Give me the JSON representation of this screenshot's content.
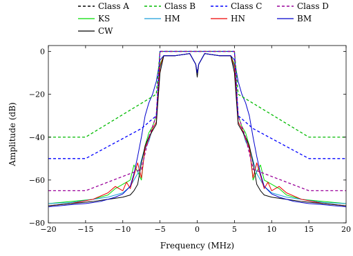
{
  "chart_data": {
    "type": "line",
    "title": "",
    "xlabel": "Frequency (MHz)",
    "ylabel": "Amplitude (dB)",
    "xlim": [
      -20,
      20
    ],
    "ylim": [
      -80,
      7
    ],
    "xticks": [
      -20,
      -15,
      -10,
      -5,
      0,
      5,
      10,
      15,
      20
    ],
    "yticks": [
      -80,
      -60,
      -40,
      -20,
      0
    ],
    "xtick_labels": [
      "−20",
      "−15",
      "−10",
      "−5",
      "0",
      "5",
      "10",
      "15",
      "20"
    ],
    "ytick_labels": [
      "−80",
      "−60",
      "−40",
      "−20",
      "0"
    ],
    "grid": false,
    "legend_placement": "top-center",
    "series": [
      {
        "name": "Class A",
        "color": "#000000",
        "style": "dashed",
        "points": [
          [
            -5.0,
            0
          ],
          [
            5.0,
            0
          ]
        ]
      },
      {
        "name": "Class B",
        "color": "#00bb00",
        "style": "dashed",
        "points": [
          [
            -20,
            -40
          ],
          [
            -15,
            -40
          ],
          [
            -5.5,
            -20
          ],
          [
            -5.0,
            0
          ],
          [
            5.0,
            0
          ],
          [
            5.5,
            -20
          ],
          [
            15,
            -40
          ],
          [
            20,
            -40
          ]
        ]
      },
      {
        "name": "Class C",
        "color": "#0000ff",
        "style": "dashed",
        "points": [
          [
            -20,
            -50
          ],
          [
            -15,
            -50
          ],
          [
            -7.5,
            -36
          ],
          [
            -5.5,
            -30
          ],
          [
            -5.0,
            0
          ],
          [
            5.0,
            0
          ],
          [
            5.5,
            -30
          ],
          [
            7.5,
            -36
          ],
          [
            15,
            -50
          ],
          [
            20,
            -50
          ]
        ]
      },
      {
        "name": "Class D",
        "color": "#990099",
        "style": "dashed",
        "points": [
          [
            -20,
            -65
          ],
          [
            -15,
            -65
          ],
          [
            -7.5,
            -55
          ],
          [
            -6.5,
            -40
          ],
          [
            -5.5,
            -30
          ],
          [
            -5.0,
            0
          ],
          [
            5.0,
            0
          ],
          [
            5.5,
            -30
          ],
          [
            6.5,
            -40
          ],
          [
            7.5,
            -55
          ],
          [
            15,
            -65
          ],
          [
            20,
            -65
          ]
        ]
      },
      {
        "name": "KS",
        "color": "#00dd00",
        "style": "solid",
        "points": [
          [
            -20,
            -71
          ],
          [
            -17,
            -70
          ],
          [
            -14,
            -69
          ],
          [
            -12,
            -67
          ],
          [
            -11,
            -64
          ],
          [
            -10,
            -62
          ],
          [
            -9,
            -60
          ],
          [
            -8.5,
            -53
          ],
          [
            -8,
            -56
          ],
          [
            -7.5,
            -60
          ],
          [
            -7,
            -44
          ],
          [
            -6.5,
            -38
          ],
          [
            -6,
            -35
          ],
          [
            -5.5,
            -30
          ],
          [
            -5.0,
            -6
          ],
          [
            -4.5,
            -2
          ],
          [
            -3,
            -2
          ],
          [
            -1,
            -1
          ],
          [
            -0.2,
            -6
          ],
          [
            0,
            -10
          ],
          [
            0.2,
            -6
          ],
          [
            1,
            -1
          ],
          [
            3,
            -2
          ],
          [
            4.5,
            -2
          ],
          [
            5.0,
            -6
          ],
          [
            5.5,
            -30
          ],
          [
            6,
            -35
          ],
          [
            6.5,
            -38
          ],
          [
            7,
            -44
          ],
          [
            7.5,
            -60
          ],
          [
            8,
            -56
          ],
          [
            8.5,
            -53
          ],
          [
            9,
            -60
          ],
          [
            10,
            -62
          ],
          [
            11,
            -64
          ],
          [
            12,
            -67
          ],
          [
            14,
            -69
          ],
          [
            17,
            -70
          ],
          [
            20,
            -71
          ]
        ]
      },
      {
        "name": "HM",
        "color": "#1a9ed9",
        "style": "solid",
        "points": [
          [
            -20,
            -71
          ],
          [
            -17,
            -70.5
          ],
          [
            -14,
            -69
          ],
          [
            -12,
            -68
          ],
          [
            -10,
            -66
          ],
          [
            -9,
            -63
          ],
          [
            -8,
            -57
          ],
          [
            -7.2,
            -47
          ],
          [
            -6.5,
            -42
          ],
          [
            -6,
            -36
          ],
          [
            -5.5,
            -33
          ],
          [
            -5.0,
            -8
          ],
          [
            -4.5,
            -2
          ],
          [
            -3,
            -2
          ],
          [
            -1,
            -1
          ],
          [
            -0.2,
            -6
          ],
          [
            0,
            -10
          ],
          [
            0.2,
            -6
          ],
          [
            1,
            -1
          ],
          [
            3,
            -2
          ],
          [
            4.5,
            -2
          ],
          [
            5.0,
            -8
          ],
          [
            5.5,
            -33
          ],
          [
            6,
            -36
          ],
          [
            6.5,
            -42
          ],
          [
            7.2,
            -47
          ],
          [
            8,
            -57
          ],
          [
            9,
            -63
          ],
          [
            10,
            -66
          ],
          [
            12,
            -68
          ],
          [
            14,
            -69
          ],
          [
            17,
            -70.5
          ],
          [
            20,
            -71
          ]
        ]
      },
      {
        "name": "HN",
        "color": "#ee0000",
        "style": "solid",
        "points": [
          [
            -20,
            -72
          ],
          [
            -17,
            -71
          ],
          [
            -14,
            -69
          ],
          [
            -12,
            -66
          ],
          [
            -11,
            -63
          ],
          [
            -10,
            -65
          ],
          [
            -9.5,
            -61
          ],
          [
            -9,
            -64
          ],
          [
            -8.5,
            -58
          ],
          [
            -8,
            -52
          ],
          [
            -7.5,
            -59
          ],
          [
            -7,
            -45
          ],
          [
            -6.5,
            -41
          ],
          [
            -6,
            -36
          ],
          [
            -5.5,
            -33
          ],
          [
            -5.0,
            -7
          ],
          [
            -4.5,
            -2
          ],
          [
            -3,
            -2
          ],
          [
            -1,
            -1
          ],
          [
            -0.2,
            -6
          ],
          [
            0,
            -10
          ],
          [
            0.2,
            -6
          ],
          [
            1,
            -1
          ],
          [
            3,
            -2
          ],
          [
            4.5,
            -2
          ],
          [
            5.0,
            -7
          ],
          [
            5.5,
            -33
          ],
          [
            6,
            -36
          ],
          [
            6.5,
            -41
          ],
          [
            7,
            -45
          ],
          [
            7.5,
            -59
          ],
          [
            8,
            -52
          ],
          [
            8.5,
            -58
          ],
          [
            9,
            -64
          ],
          [
            9.5,
            -61
          ],
          [
            10,
            -65
          ],
          [
            11,
            -63
          ],
          [
            12,
            -66
          ],
          [
            14,
            -69
          ],
          [
            17,
            -71
          ],
          [
            20,
            -72
          ]
        ]
      },
      {
        "name": "BM",
        "color": "#0000cc",
        "style": "solid",
        "points": [
          [
            -20,
            -72.5
          ],
          [
            -17,
            -71.5
          ],
          [
            -15,
            -71
          ],
          [
            -13,
            -70
          ],
          [
            -11,
            -68
          ],
          [
            -10,
            -66.5
          ],
          [
            -9,
            -63
          ],
          [
            -8.5,
            -57
          ],
          [
            -8,
            -49
          ],
          [
            -7.5,
            -40
          ],
          [
            -7,
            -30
          ],
          [
            -6.5,
            -24
          ],
          [
            -6,
            -20
          ],
          [
            -5.5,
            -14
          ],
          [
            -5.0,
            -4
          ],
          [
            -4.5,
            -2
          ],
          [
            -3,
            -2
          ],
          [
            -1,
            -1
          ],
          [
            -0.2,
            -6
          ],
          [
            0,
            -10
          ],
          [
            0.2,
            -6
          ],
          [
            1,
            -1
          ],
          [
            3,
            -2
          ],
          [
            4.5,
            -2
          ],
          [
            5.0,
            -4
          ],
          [
            5.5,
            -14
          ],
          [
            6,
            -20
          ],
          [
            6.5,
            -24
          ],
          [
            7,
            -30
          ],
          [
            7.5,
            -40
          ],
          [
            8,
            -49
          ],
          [
            8.5,
            -57
          ],
          [
            9,
            -63
          ],
          [
            10,
            -66.5
          ],
          [
            11,
            -68
          ],
          [
            13,
            -70
          ],
          [
            15,
            -71
          ],
          [
            17,
            -71.5
          ],
          [
            20,
            -72.5
          ]
        ]
      },
      {
        "name": "CW",
        "color": "#000000",
        "style": "solid",
        "points": [
          [
            -20,
            -72
          ],
          [
            -17,
            -71
          ],
          [
            -14,
            -70
          ],
          [
            -12,
            -69
          ],
          [
            -10,
            -68
          ],
          [
            -9,
            -67
          ],
          [
            -8.5,
            -65
          ],
          [
            -8,
            -62
          ],
          [
            -7.5,
            -52
          ],
          [
            -7,
            -44
          ],
          [
            -6.5,
            -40
          ],
          [
            -6,
            -37
          ],
          [
            -5.5,
            -34
          ],
          [
            -5.0,
            -10
          ],
          [
            -4.5,
            -2
          ],
          [
            -3,
            -2
          ],
          [
            -1,
            -1
          ],
          [
            -0.2,
            -6
          ],
          [
            0,
            -12
          ],
          [
            0.2,
            -6
          ],
          [
            1,
            -1
          ],
          [
            3,
            -2
          ],
          [
            4.5,
            -2
          ],
          [
            5.0,
            -10
          ],
          [
            5.5,
            -34
          ],
          [
            6,
            -37
          ],
          [
            6.5,
            -40
          ],
          [
            7,
            -44
          ],
          [
            7.5,
            -52
          ],
          [
            8,
            -62
          ],
          [
            8.5,
            -65
          ],
          [
            9,
            -67
          ],
          [
            10,
            -68
          ],
          [
            12,
            -69
          ],
          [
            14,
            -70
          ],
          [
            17,
            -71
          ],
          [
            20,
            -72
          ]
        ]
      }
    ]
  }
}
